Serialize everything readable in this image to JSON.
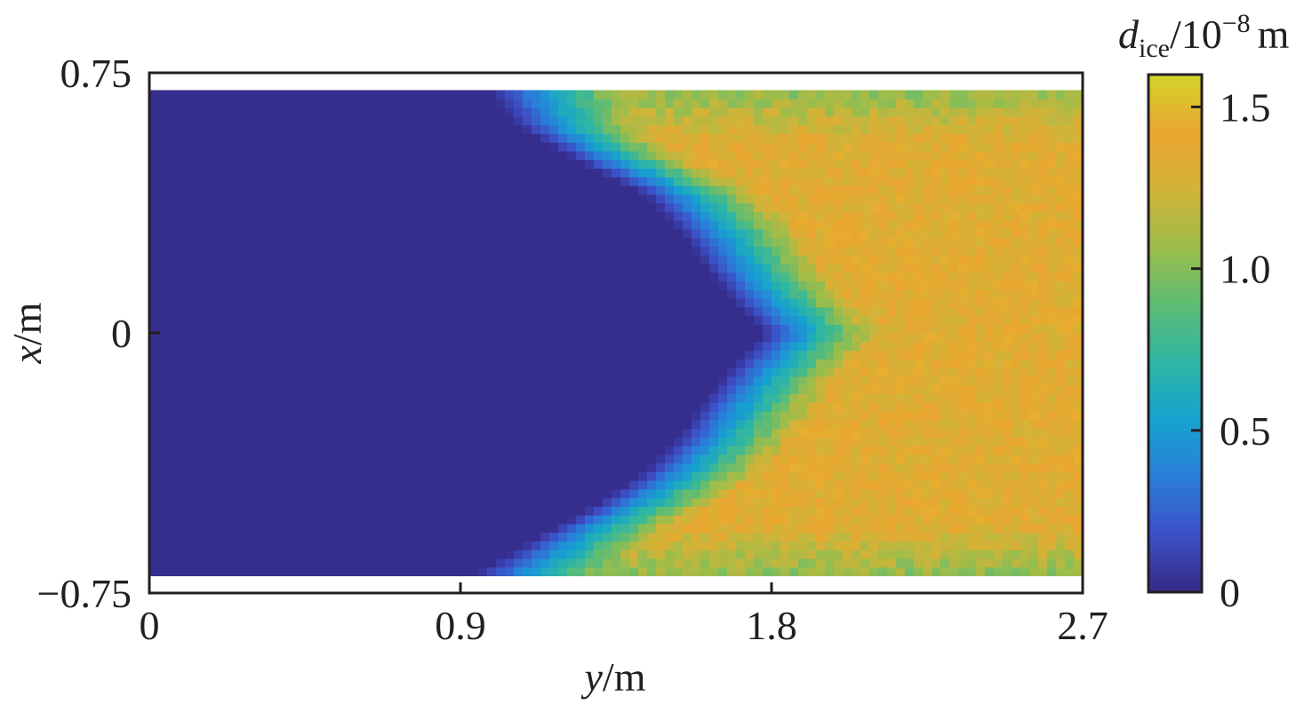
{
  "chart_data": {
    "type": "heatmap",
    "title": "",
    "x_axis": {
      "variable": "y",
      "unit": "/m",
      "range": [
        0,
        2.7
      ],
      "ticks": [
        0,
        0.9,
        1.8,
        2.7
      ],
      "tick_labels": [
        "0",
        "0.9",
        "1.8",
        "2.7"
      ]
    },
    "y_axis": {
      "variable": "x",
      "unit": "/m",
      "range": [
        -0.75,
        0.75
      ],
      "data_extent": [
        -0.7,
        0.7
      ],
      "ticks": [
        -0.75,
        0,
        0.75
      ],
      "tick_labels": [
        "−0.75",
        "0",
        "0.75"
      ]
    },
    "colorbar": {
      "label_symbol": "d",
      "label_subscript": "ice",
      "label_scale": "/10",
      "label_exponent": "−8",
      "label_unit": "m",
      "range": [
        0,
        1.6
      ],
      "ticks": [
        0,
        0.5,
        1.0,
        1.5
      ],
      "tick_labels": [
        "0",
        "0.5",
        "1.0",
        "1.5"
      ],
      "colormap": [
        "#352a87",
        "#3d4fc7",
        "#2a7ed9",
        "#16a2cf",
        "#2eb6a4",
        "#5ebc74",
        "#9dbd4a",
        "#d2b338",
        "#eaa630",
        "#d4d32a"
      ]
    },
    "field": {
      "description_free": true,
      "low_value": 0.02,
      "high_value": 1.35,
      "boundary_points": [
        {
          "x": 0.7,
          "y": 1.0
        },
        {
          "x": 0.6,
          "y": 1.08
        },
        {
          "x": 0.5,
          "y": 1.25
        },
        {
          "x": 0.4,
          "y": 1.45
        },
        {
          "x": 0.3,
          "y": 1.55
        },
        {
          "x": 0.2,
          "y": 1.62
        },
        {
          "x": 0.1,
          "y": 1.7
        },
        {
          "x": 0.0,
          "y": 1.8
        },
        {
          "x": -0.1,
          "y": 1.7
        },
        {
          "x": -0.2,
          "y": 1.62
        },
        {
          "x": -0.3,
          "y": 1.55
        },
        {
          "x": -0.4,
          "y": 1.45
        },
        {
          "x": -0.5,
          "y": 1.3
        },
        {
          "x": -0.6,
          "y": 1.12
        },
        {
          "x": -0.7,
          "y": 0.95
        }
      ]
    }
  }
}
